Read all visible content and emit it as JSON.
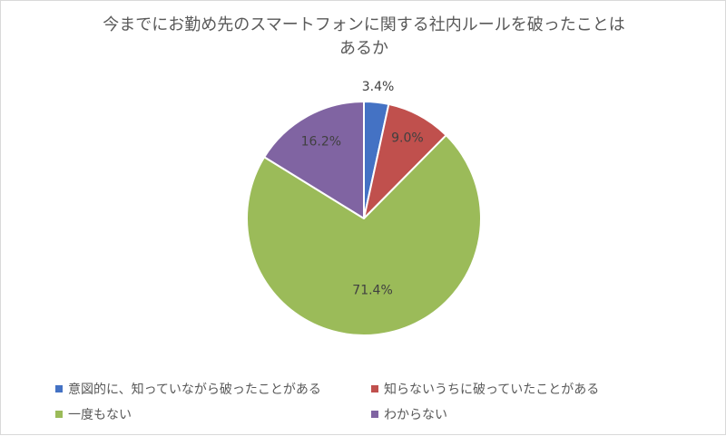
{
  "chart_data": {
    "type": "pie",
    "title_lines": [
      "今までにお勤め先のスマートフォンに関する社内ルールを破ったことは",
      "あるか"
    ],
    "slices": [
      {
        "name": "意図的に、知っていながら破ったことがある",
        "value": 3.4,
        "label": "3.4%",
        "color": "#4472c4"
      },
      {
        "name": "知らないうちに破っていたことがある",
        "value": 9.0,
        "label": "9.0%",
        "color": "#c0504d"
      },
      {
        "name": "一度もない",
        "value": 71.4,
        "label": "71.4%",
        "color": "#9bbb59"
      },
      {
        "name": "わからない",
        "value": 16.2,
        "label": "16.2%",
        "color": "#8064a2"
      }
    ],
    "start_angle": "12 o'clock",
    "direction": "clockwise",
    "legend_position": "bottom"
  }
}
